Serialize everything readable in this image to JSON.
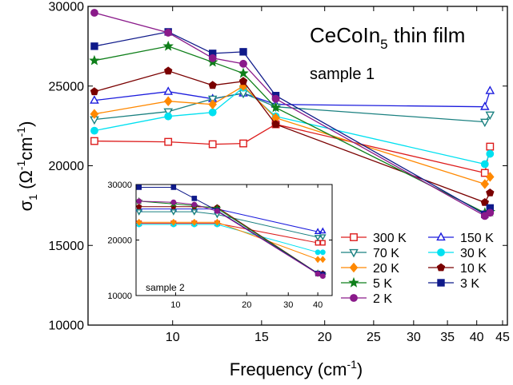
{
  "chart_data": [
    {
      "type": "line",
      "title": "CeCoIn",
      "title_sub": "5",
      "title_suffix": " thin film",
      "annotation": "sample 1",
      "xlabel": "Frequency (cm",
      "xlabel_sup": "-1",
      "xlabel_suffix": ")",
      "ylabel": "σ",
      "ylabel_sub": "1",
      "ylabel_units": " (Ω",
      "ylabel_units_sup1": "-1",
      "ylabel_units_mid": "cm",
      "ylabel_units_sup2": "-1",
      "ylabel_units_end": ")",
      "x_scale": "log",
      "xlim": [
        6.8,
        46
      ],
      "ylim": [
        10000,
        30000
      ],
      "xticks": [
        10,
        15,
        20,
        25,
        30,
        35,
        40,
        45
      ],
      "yticks": [
        10000,
        15000,
        20000,
        25000,
        30000
      ],
      "legend_position": "lower-right",
      "series": [
        {
          "name": "300 K",
          "color": "#dd1c1c",
          "marker": "square-open",
          "x": [
            7.0,
            9.8,
            12.0,
            13.8,
            16.0,
            41.5,
            42.5
          ],
          "y": [
            21550,
            21500,
            21350,
            21400,
            22600,
            19550,
            21200
          ]
        },
        {
          "name": "150 K",
          "color": "#1c1cdd",
          "marker": "triangle-open",
          "x": [
            7.0,
            9.8,
            12.0,
            13.8,
            16.0,
            41.5,
            42.5
          ],
          "y": [
            24100,
            24650,
            24200,
            24550,
            23850,
            23700,
            24700
          ]
        },
        {
          "name": "70 K",
          "color": "#1a8080",
          "marker": "tridown-open",
          "x": [
            7.0,
            9.8,
            12.0,
            13.8,
            16.0,
            41.5,
            42.5
          ],
          "y": [
            22900,
            23400,
            24200,
            24550,
            23700,
            22750,
            23200
          ]
        },
        {
          "name": "30 K",
          "color": "#00e0f0",
          "marker": "circle",
          "x": [
            7.0,
            9.8,
            12.0,
            13.8,
            16.0,
            41.5,
            42.5
          ],
          "y": [
            22200,
            23100,
            23350,
            24900,
            23100,
            20100,
            20750
          ]
        },
        {
          "name": "20 K",
          "color": "#ff8800",
          "marker": "diamond",
          "x": [
            7.0,
            9.8,
            12.0,
            13.8,
            16.0,
            41.5,
            42.5
          ],
          "y": [
            23250,
            24050,
            23850,
            25000,
            23000,
            18850,
            19300
          ]
        },
        {
          "name": "10 K",
          "color": "#7a0000",
          "marker": "pentagon",
          "x": [
            7.0,
            9.8,
            12.0,
            13.8,
            16.0,
            41.5,
            42.5
          ],
          "y": [
            24650,
            25950,
            25050,
            25300,
            22600,
            17700,
            18300
          ]
        },
        {
          "name": "5 K",
          "color": "#0f7f1a",
          "marker": "star",
          "x": [
            7.0,
            9.8,
            12.0,
            13.8,
            16.0,
            41.5,
            42.5
          ],
          "y": [
            26600,
            27500,
            26500,
            25800,
            23650,
            17050,
            17100
          ]
        },
        {
          "name": "3 K",
          "color": "#0f1a8a",
          "marker": "square",
          "x": [
            7.0,
            9.8,
            12.0,
            13.8,
            16.0,
            41.5,
            42.5
          ],
          "y": [
            27500,
            28400,
            27050,
            27150,
            24400,
            16950,
            17350
          ]
        },
        {
          "name": "2 K",
          "color": "#8a1a8a",
          "marker": "circle",
          "x": [
            7.0,
            9.8,
            12.0,
            13.8,
            16.0,
            41.5,
            42.5
          ],
          "y": [
            29600,
            28350,
            26750,
            26400,
            24200,
            16850,
            17050
          ]
        }
      ]
    },
    {
      "type": "line",
      "annotation": "sample 2",
      "x_scale": "log",
      "xlim": [
        6.8,
        46
      ],
      "ylim": [
        10000,
        30000
      ],
      "xticks": [
        10,
        20,
        30,
        40
      ],
      "yticks": [
        10000,
        20000,
        30000
      ],
      "series": [
        {
          "name": "300 K",
          "color": "#dd1c1c",
          "marker": "square-open",
          "x": [
            7.0,
            9.8,
            12.0,
            15.0,
            40.0,
            42.0
          ],
          "y": [
            23000,
            23000,
            23000,
            23000,
            19500,
            19500
          ]
        },
        {
          "name": "150 K",
          "color": "#1c1cdd",
          "marker": "triangle-open",
          "x": [
            7.0,
            9.8,
            12.0,
            15.0,
            40.0,
            42.0
          ],
          "y": [
            25600,
            25600,
            25600,
            25600,
            21500,
            21600
          ]
        },
        {
          "name": "70 K",
          "color": "#1a8080",
          "marker": "tridown-open",
          "x": [
            7.0,
            9.8,
            12.0,
            15.0,
            40.0,
            42.0
          ],
          "y": [
            25100,
            25100,
            25100,
            24600,
            20500,
            20600
          ]
        },
        {
          "name": "30 K",
          "color": "#00e0f0",
          "marker": "circle",
          "x": [
            7.0,
            9.8,
            12.0,
            15.0,
            40.0,
            42.0
          ],
          "y": [
            22800,
            22800,
            22800,
            22800,
            17800,
            17800
          ]
        },
        {
          "name": "20 K",
          "color": "#ff8800",
          "marker": "diamond",
          "x": [
            7.0,
            9.8,
            12.0,
            15.0,
            40.0,
            42.0
          ],
          "y": [
            23200,
            23200,
            23200,
            23200,
            16500,
            16500
          ]
        },
        {
          "name": "10 K",
          "color": "#7a0000",
          "marker": "pentagon",
          "x": [
            7.0,
            9.8,
            12.0,
            15.0,
            40.0,
            42.0
          ],
          "y": [
            26000,
            26000,
            26000,
            25900,
            14000,
            14000
          ]
        },
        {
          "name": "5 K",
          "color": "#0f7f1a",
          "marker": "star",
          "x": [
            7.0,
            9.8,
            12.0,
            15.0,
            40.0,
            42.0
          ],
          "y": [
            27000,
            26500,
            26200,
            25700,
            14000,
            13700
          ]
        },
        {
          "name": "3 K",
          "color": "#0f1a8a",
          "marker": "square",
          "x": [
            7.0,
            9.8,
            12.0,
            15.0,
            40.0,
            42.0
          ],
          "y": [
            29500,
            29500,
            27500,
            25300,
            14000,
            13800
          ]
        },
        {
          "name": "2 K",
          "color": "#8a1a8a",
          "marker": "circle",
          "x": [
            7.0,
            9.8,
            12.0,
            15.0,
            40.0,
            42.0
          ],
          "y": [
            27000,
            26800,
            26400,
            25200,
            13900,
            13500
          ]
        }
      ]
    }
  ]
}
